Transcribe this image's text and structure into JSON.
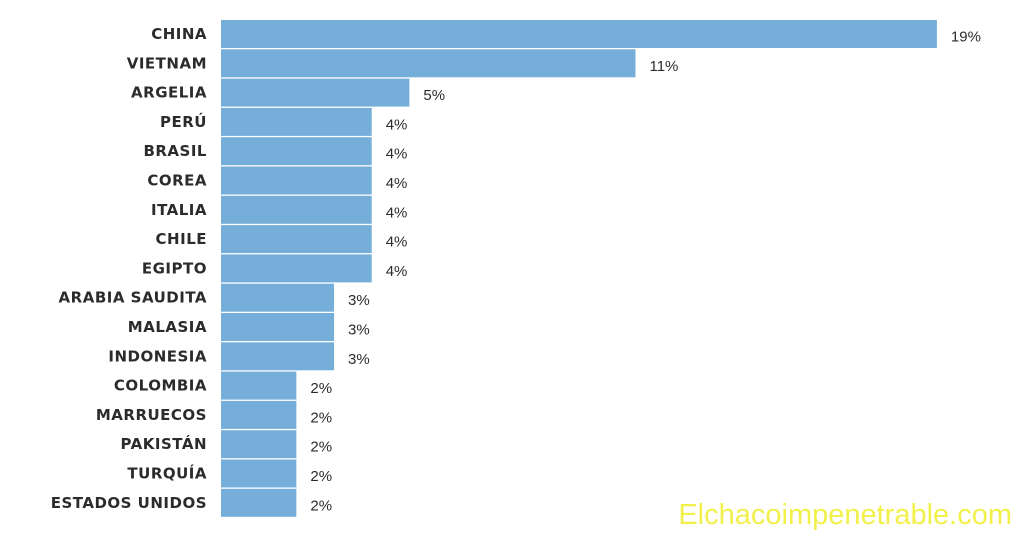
{
  "watermark": "Elchacoimpenetrable.com",
  "chart_data": {
    "type": "bar",
    "orientation": "horizontal",
    "categories": [
      "CHINA",
      "VIETNAM",
      "ARGELIA",
      "PERÚ",
      "BRASIL",
      "COREA",
      "ITALIA",
      "CHILE",
      "EGIPTO",
      "ARABIA SAUDITA",
      "MALASIA",
      "INDONESIA",
      "COLOMBIA",
      "MARRUECOS",
      "PAKISTÁN",
      "TURQUÍA",
      "ESTADOS UNIDOS"
    ],
    "values": [
      19,
      11,
      5,
      4,
      4,
      4,
      4,
      4,
      4,
      3,
      3,
      3,
      2,
      2,
      2,
      2,
      2
    ],
    "value_labels": [
      "19%",
      "11%",
      "5%",
      "4%",
      "4%",
      "4%",
      "4%",
      "4%",
      "4%",
      "3%",
      "3%",
      "3%",
      "2%",
      "2%",
      "2%",
      "2%",
      "2%"
    ],
    "bar_color": "#75afd9",
    "grid": false,
    "legend": "none"
  }
}
